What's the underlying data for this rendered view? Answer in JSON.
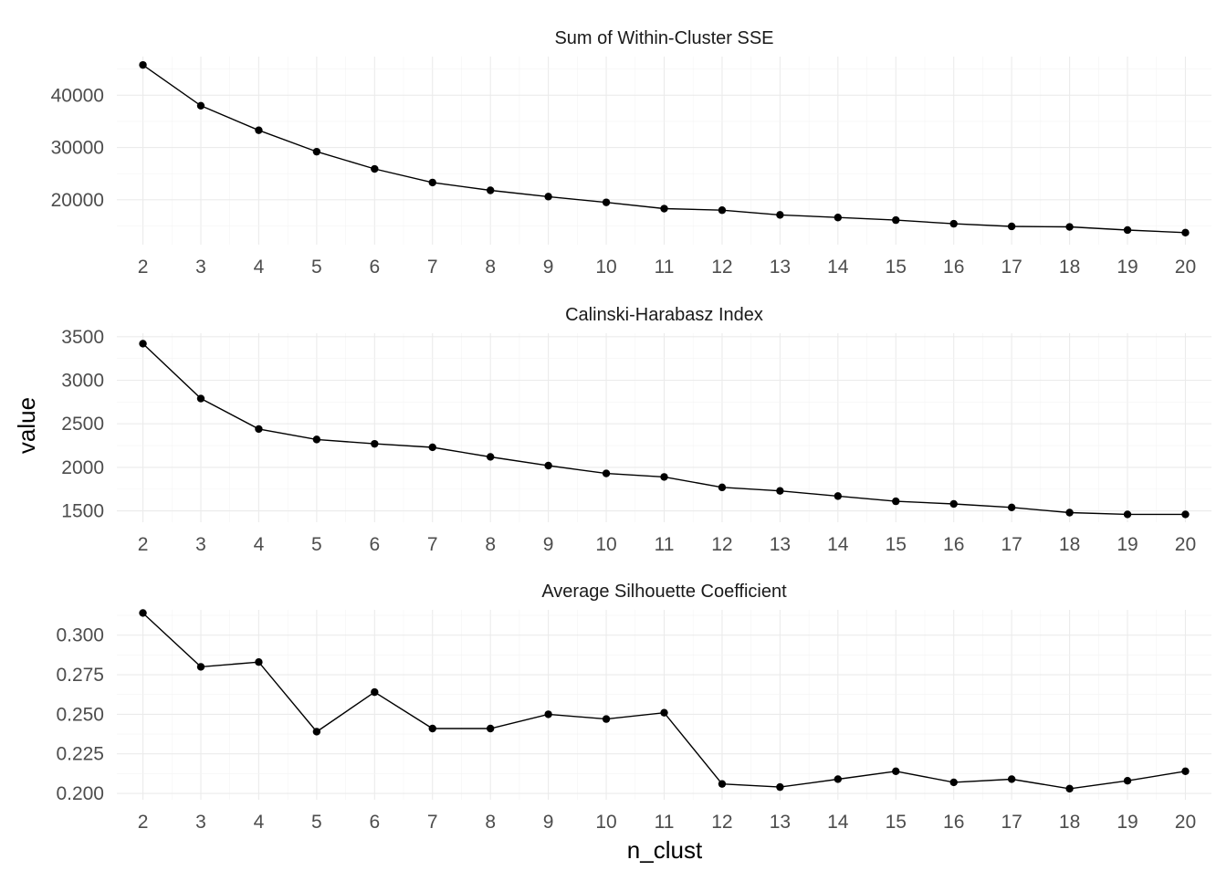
{
  "chart_data": {
    "type": "line",
    "facet_layout": "vertical",
    "xlabel": "n_clust",
    "ylabel": "value",
    "x": [
      2,
      3,
      4,
      5,
      6,
      7,
      8,
      9,
      10,
      11,
      12,
      13,
      14,
      15,
      16,
      17,
      18,
      19,
      20
    ],
    "xlim": [
      1.55,
      20.45
    ],
    "panels": [
      {
        "title": "Sum of Within-Cluster SSE",
        "yticks": [
          20000,
          30000,
          40000
        ],
        "ylim": [
          11400,
          47400
        ],
        "y_tick_labels": [
          "20000",
          "30000",
          "40000"
        ],
        "values": [
          45800,
          38000,
          33300,
          29200,
          25900,
          23300,
          21800,
          20600,
          19500,
          18300,
          18000,
          17100,
          16600,
          16100,
          15400,
          14900,
          14800,
          14200,
          13700
        ]
      },
      {
        "title": "Calinski-Harabasz Index",
        "yticks": [
          1500,
          2000,
          2500,
          3000,
          3500
        ],
        "ylim": [
          1370,
          3540
        ],
        "y_tick_labels": [
          "1500",
          "2000",
          "2500",
          "3000",
          "3500"
        ],
        "values": [
          3420,
          2790,
          2440,
          2320,
          2270,
          2230,
          2120,
          2020,
          1930,
          1890,
          1770,
          1730,
          1670,
          1610,
          1580,
          1540,
          1480,
          1460,
          1460
        ]
      },
      {
        "title": "Average Silhouette Coefficient",
        "yticks": [
          0.2,
          0.225,
          0.25,
          0.275,
          0.3
        ],
        "ylim": [
          0.196,
          0.316
        ],
        "y_tick_labels": [
          "0.200",
          "0.225",
          "0.250",
          "0.275",
          "0.300"
        ],
        "values": [
          0.314,
          0.28,
          0.283,
          0.239,
          0.264,
          0.241,
          0.241,
          0.25,
          0.247,
          0.251,
          0.206,
          0.204,
          0.209,
          0.214,
          0.207,
          0.209,
          0.203,
          0.208,
          0.214
        ]
      }
    ],
    "grid": true,
    "legend": "none"
  }
}
